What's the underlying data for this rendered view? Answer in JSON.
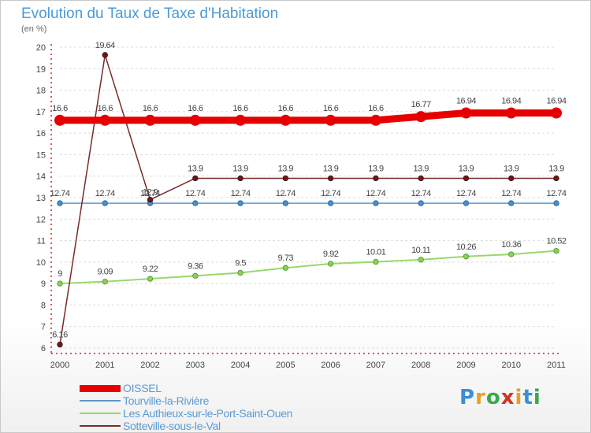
{
  "header": {
    "title": "Evolution du Taux de Taxe d'Habitation",
    "subtitle": "(en %)"
  },
  "logo": {
    "text": "Proxiti",
    "letter_colors": [
      "#3a8fd6",
      "#e8a020",
      "#3aa84a",
      "#d83020",
      "#e8a020",
      "#3a8fd6",
      "#3aa84a"
    ]
  },
  "chart_data": {
    "type": "line",
    "title": "Evolution du Taux de Taxe d'Habitation",
    "subtitle": "(en %)",
    "xlabel": "",
    "ylabel": "",
    "x": [
      "2000",
      "2001",
      "2002",
      "2003",
      "2004",
      "2005",
      "2006",
      "2007",
      "2008",
      "2009",
      "2010",
      "2011"
    ],
    "ylim": [
      6,
      20
    ],
    "yticks": [
      6,
      7,
      8,
      9,
      10,
      11,
      12,
      13,
      14,
      15,
      16,
      17,
      18,
      19,
      20
    ],
    "grid": "horizontal dashed",
    "legend_position": "bottom-left",
    "series": [
      {
        "name": "OISSEL",
        "color": "#e60000",
        "values": [
          16.6,
          16.6,
          16.6,
          16.6,
          16.6,
          16.6,
          16.6,
          16.6,
          16.77,
          16.94,
          16.94,
          16.94
        ],
        "labels": [
          "16.6",
          "16.6",
          "16.6",
          "16.6",
          "16.6",
          "16.6",
          "16.6",
          "16.6",
          "16.77",
          "16.94",
          "16.94",
          "16.94"
        ]
      },
      {
        "name": "Tourville-la-Rivière",
        "color": "#5b9ac9",
        "values": [
          12.74,
          12.74,
          12.74,
          12.74,
          12.74,
          12.74,
          12.74,
          12.74,
          12.74,
          12.74,
          12.74,
          12.74
        ],
        "labels": [
          "12.74",
          "12.74",
          "12.74",
          "12.74",
          "12.74",
          "12.74",
          "12.74",
          "12.74",
          "12.74",
          "12.74",
          "12.74",
          "12.74"
        ]
      },
      {
        "name": "Les Authieux-sur-le-Port-Saint-Ouen",
        "color": "#9ad86a",
        "values": [
          9,
          9.09,
          9.22,
          9.36,
          9.5,
          9.73,
          9.92,
          10.01,
          10.11,
          10.26,
          10.36,
          10.52
        ],
        "labels": [
          "9",
          "9.09",
          "9.22",
          "9.36",
          "9.5",
          "9.73",
          "9.92",
          "10.01",
          "10.11",
          "10.26",
          "10.36",
          "10.52"
        ]
      },
      {
        "name": "Sotteville-sous-le-Val",
        "color": "#7a2a2a",
        "values": [
          6.16,
          19.64,
          12.9,
          13.9,
          13.9,
          13.9,
          13.9,
          13.9,
          13.9,
          13.9,
          13.9,
          13.9
        ],
        "labels": [
          "6.16",
          "19.64",
          "12.9",
          "13.9",
          "13.9",
          "13.9",
          "13.9",
          "13.9",
          "13.9",
          "13.9",
          "13.9",
          "13.9"
        ]
      }
    ]
  }
}
